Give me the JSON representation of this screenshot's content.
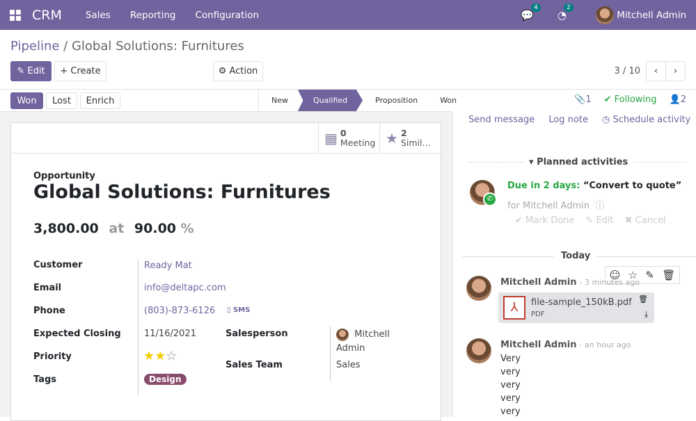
{
  "navbar": {
    "app": "CRM",
    "menus": [
      "Sales",
      "Reporting",
      "Configuration"
    ],
    "messages_count": "4",
    "activities_count": "2",
    "user": "Mitchell Admin",
    "color": "#71639e"
  },
  "breadcrumb": {
    "parent": "Pipeline",
    "current": "Global Solutions: Furnitures"
  },
  "toolbar": {
    "edit": "Edit",
    "create": "Create",
    "action": "Action",
    "pager": "3 / 10"
  },
  "statusbar": {
    "buttons": [
      "Won",
      "Lost",
      "Enrich"
    ],
    "stages": [
      "New",
      "Qualified",
      "Proposition",
      "Won"
    ],
    "active_stage": "Qualified"
  },
  "smart_buttons": [
    {
      "count": "0",
      "label": "Meeting",
      "icon": "calendar-icon"
    },
    {
      "count": "2",
      "label": "Simil…",
      "icon": "star-icon"
    }
  ],
  "form": {
    "type": "Opportunity",
    "title": "Global Solutions: Furnitures",
    "revenue": "3,800.00",
    "at": "at",
    "probability": "90.00",
    "percent": "%",
    "fields": {
      "customer_label": "Customer",
      "customer": "Ready Mat",
      "email_label": "Email",
      "email": "info@deltapc.com",
      "phone_label": "Phone",
      "phone": "(803)-873-6126",
      "sms": "SMS",
      "closing_label": "Expected Closing",
      "closing": "11/16/2021",
      "priority_label": "Priority",
      "priority": 2,
      "priority_max": 3,
      "tags_label": "Tags",
      "tag": "Design",
      "salesperson_label": "Salesperson",
      "salesperson_first": "Mitchell",
      "salesperson_last": "Admin",
      "team_label": "Sales Team",
      "team": "Sales"
    }
  },
  "chatter": {
    "attachments": "1",
    "following": "Following",
    "followers": "2",
    "send_message": "Send message",
    "log_note": "Log note",
    "schedule": "Schedule activity",
    "planned": "Planned activities",
    "due": "Due in 2 days:",
    "activity": "“Convert to quote”",
    "for": "for Mitchell Admin",
    "mark_done": "Mark Done",
    "edit": "Edit",
    "cancel": "Cancel",
    "today": "Today",
    "messages": [
      {
        "author": "Mitchell Admin",
        "time": "- 3 minutes ago",
        "file": "file-sample_150kB.pdf",
        "file_type": "PDF"
      },
      {
        "author": "Mitchell Admin",
        "time": "- an hour ago",
        "lines": [
          "Very",
          "very",
          "very",
          "very",
          "very"
        ]
      }
    ]
  }
}
